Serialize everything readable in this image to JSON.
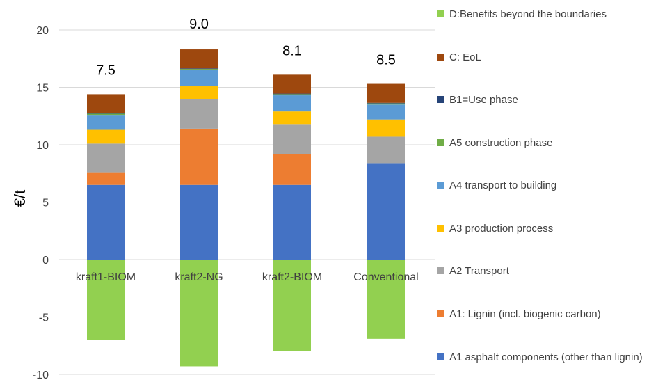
{
  "chart_data": {
    "type": "bar",
    "stacked": true,
    "categories": [
      "kraft1-BIOM",
      "kraft2-NG",
      "kraft2-BIOM",
      "Conventional"
    ],
    "ylabel": "€/t",
    "ylim": [
      -10,
      20
    ],
    "yticks": [
      -10,
      -5,
      0,
      5,
      10,
      15,
      20
    ],
    "grid": true,
    "legend_position": "right",
    "totals": [
      "7.5",
      "9.0",
      "8.1",
      "8.5"
    ],
    "series": [
      {
        "name": "A1 asphalt components (other than lignin)",
        "color": "#4472C4",
        "values": [
          6.5,
          6.5,
          6.5,
          8.4
        ]
      },
      {
        "name": "A1: Lignin (incl. biogenic carbon)",
        "color": "#ED7D31",
        "values": [
          1.1,
          4.9,
          2.7,
          0
        ]
      },
      {
        "name": "A2 Transport",
        "color": "#A5A5A5",
        "values": [
          2.5,
          2.6,
          2.6,
          2.3
        ]
      },
      {
        "name": "A3 production process",
        "color": "#FFC000",
        "values": [
          1.2,
          1.1,
          1.1,
          1.5
        ]
      },
      {
        "name": "A4 transport to building",
        "color": "#5B9BD5",
        "values": [
          1.3,
          1.4,
          1.4,
          1.3
        ]
      },
      {
        "name": "A5 construction phase",
        "color": "#70AD47",
        "values": [
          0.1,
          0.1,
          0.1,
          0.1
        ]
      },
      {
        "name": "B1=Use phase",
        "color": "#264478",
        "values": [
          0.05,
          0.05,
          0.05,
          0.05
        ]
      },
      {
        "name": "C: EoL",
        "color": "#9E480E",
        "values": [
          1.65,
          1.65,
          1.65,
          1.65
        ]
      },
      {
        "name": "D:Benefits beyond the boundaries",
        "color": "#92D050",
        "values": [
          -7.0,
          -9.3,
          -8.0,
          -6.9
        ]
      }
    ],
    "legend_order": [
      8,
      7,
      6,
      5,
      4,
      3,
      2,
      1,
      0
    ]
  }
}
